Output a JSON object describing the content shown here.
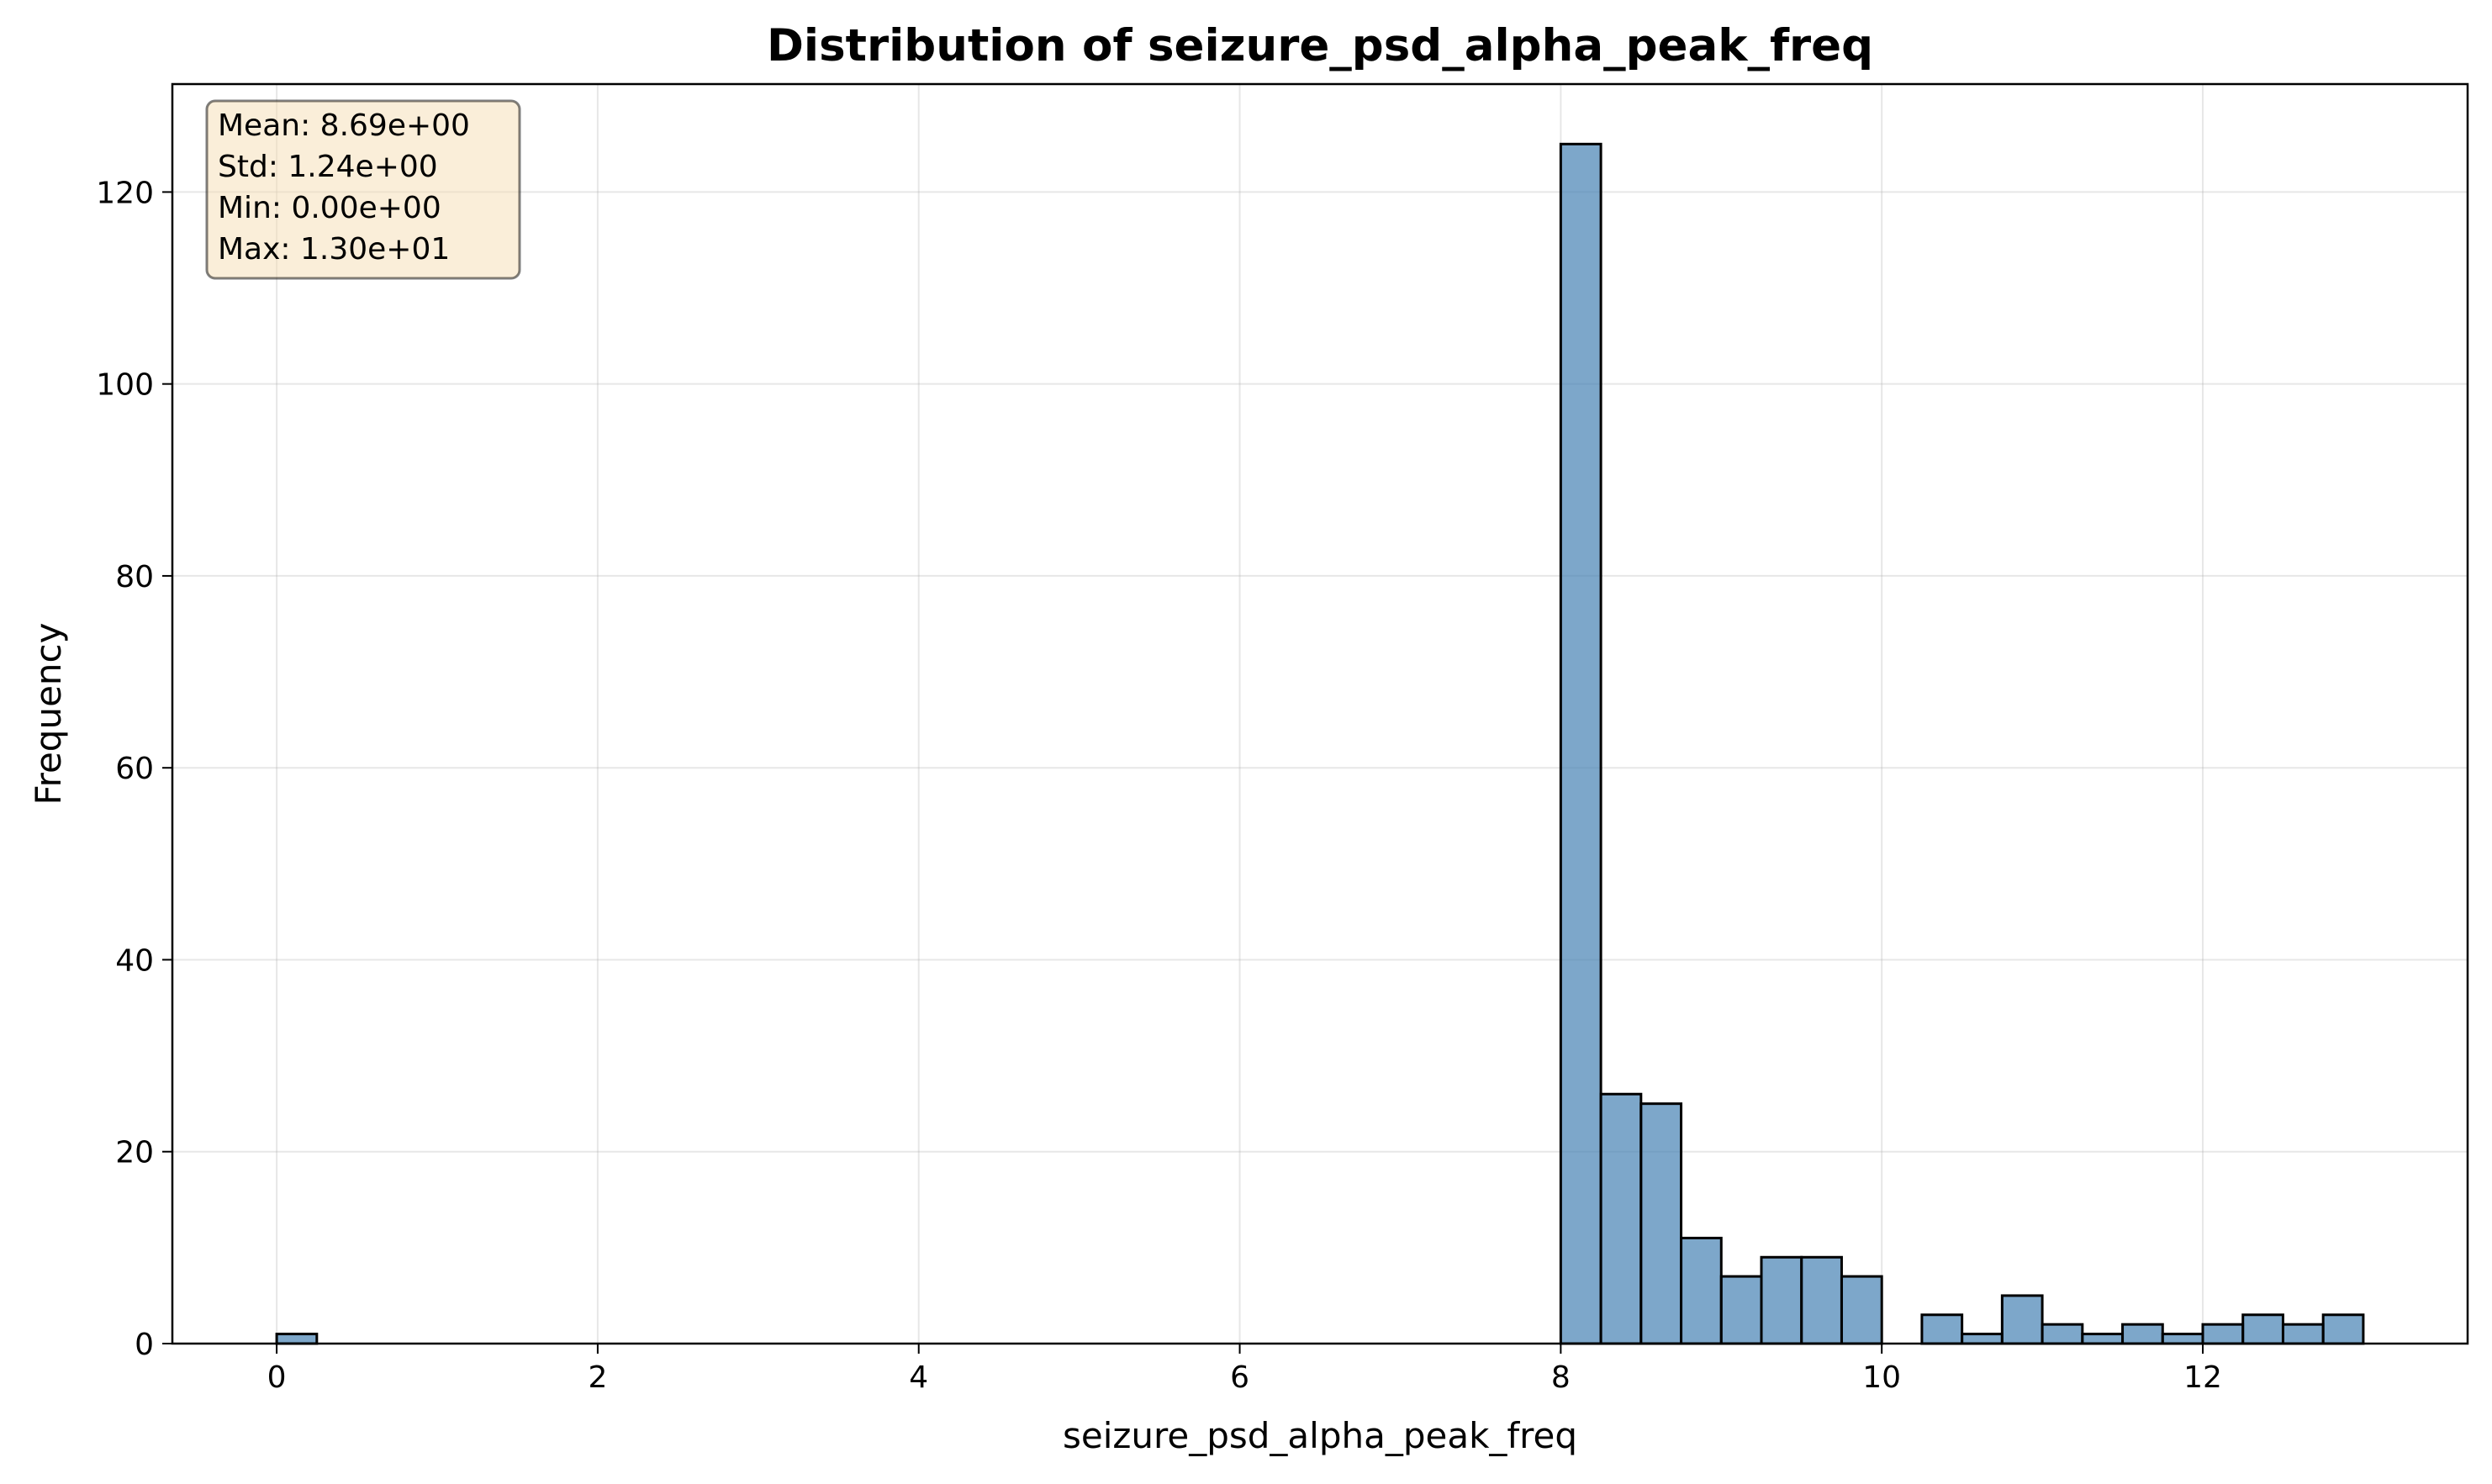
{
  "chart_data": {
    "type": "bar",
    "title": "Distribution of seizure_psd_alpha_peak_freq",
    "xlabel": "seizure_psd_alpha_peak_freq",
    "ylabel": "Frequency",
    "xlim": [
      -0.65,
      13.65
    ],
    "ylim": [
      0,
      131.25
    ],
    "xticks": [
      0,
      2,
      4,
      6,
      8,
      10,
      12
    ],
    "yticks": [
      0,
      20,
      40,
      60,
      80,
      100,
      120
    ],
    "grid": true,
    "bin_width": 0.25,
    "bins": [
      {
        "x0": 0.0,
        "count": 1
      },
      {
        "x0": 8.0,
        "count": 125
      },
      {
        "x0": 8.25,
        "count": 26
      },
      {
        "x0": 8.5,
        "count": 25
      },
      {
        "x0": 8.75,
        "count": 11
      },
      {
        "x0": 9.0,
        "count": 7
      },
      {
        "x0": 9.25,
        "count": 9
      },
      {
        "x0": 9.5,
        "count": 9
      },
      {
        "x0": 9.75,
        "count": 7
      },
      {
        "x0": 10.25,
        "count": 3
      },
      {
        "x0": 10.5,
        "count": 1
      },
      {
        "x0": 10.75,
        "count": 5
      },
      {
        "x0": 11.0,
        "count": 2
      },
      {
        "x0": 11.25,
        "count": 1
      },
      {
        "x0": 11.5,
        "count": 2
      },
      {
        "x0": 11.75,
        "count": 1
      },
      {
        "x0": 12.0,
        "count": 2
      },
      {
        "x0": 12.25,
        "count": 3
      },
      {
        "x0": 12.5,
        "count": 2
      },
      {
        "x0": 12.75,
        "count": 3
      }
    ],
    "stats_box": {
      "lines": [
        "Mean: 8.69e+00",
        "Std: 1.24e+00",
        "Min: 0.00e+00",
        "Max: 1.30e+01"
      ],
      "placement": "top-left",
      "background": "#f5deb3",
      "border": "#000000"
    },
    "colors": {
      "bar_fill": "#4682b4",
      "bar_edge": "#000000"
    }
  }
}
